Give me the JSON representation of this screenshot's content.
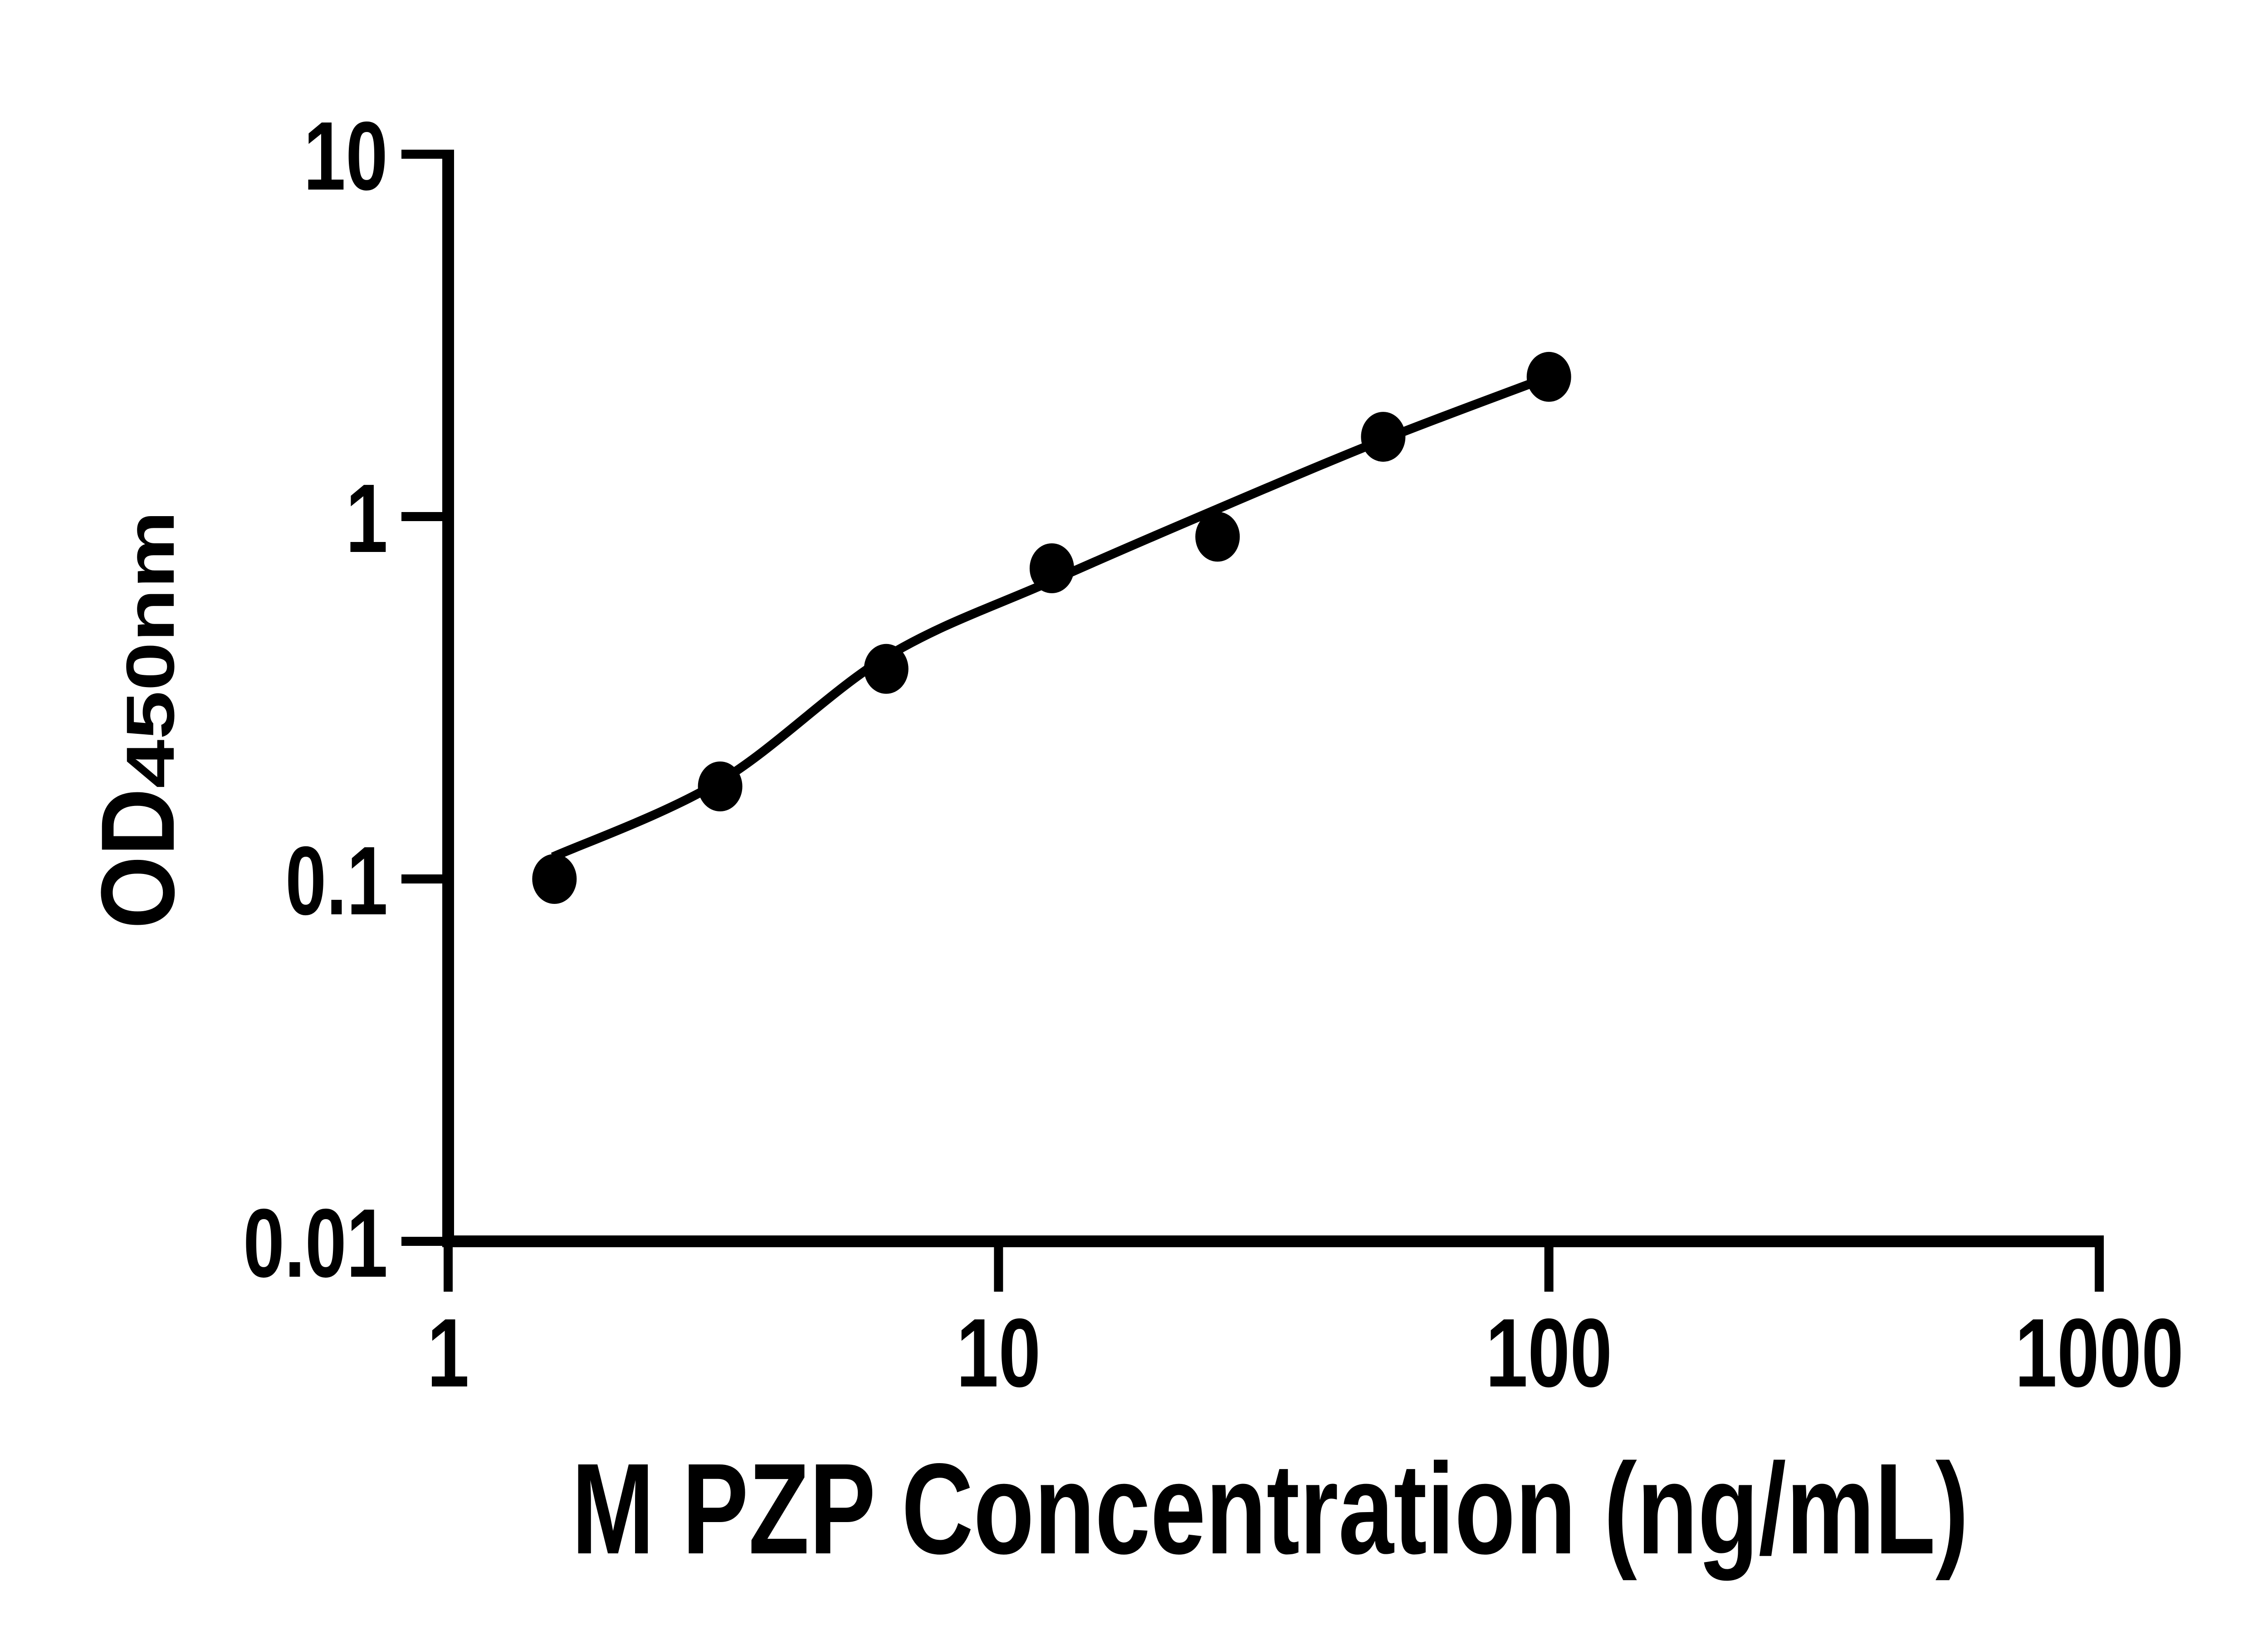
{
  "figure": {
    "background_color": "#ffffff",
    "ink_color": "#000000"
  },
  "chart_data": {
    "type": "scatter",
    "title": "",
    "xlabel": "M PZP Concentration (ng/mL)",
    "ylabel_main": "OD",
    "ylabel_sub": "450nm",
    "x_scale": "log",
    "y_scale": "log",
    "xlim": [
      1,
      1000
    ],
    "ylim": [
      0.01,
      10
    ],
    "x_ticks": [
      1,
      10,
      100,
      1000
    ],
    "y_ticks": [
      10,
      1,
      0.1,
      0.01
    ],
    "grid": false,
    "legend": null,
    "marker_color": "#000000",
    "line_color": "#000000",
    "series": [
      {
        "name": "standard-curve-points",
        "marker": "circle",
        "points": [
          {
            "x": 1.56,
            "y": 0.1
          },
          {
            "x": 3.12,
            "y": 0.18
          },
          {
            "x": 6.25,
            "y": 0.38
          },
          {
            "x": 12.5,
            "y": 0.72
          },
          {
            "x": 25,
            "y": 0.88
          },
          {
            "x": 50,
            "y": 1.66
          },
          {
            "x": 100,
            "y": 2.43
          }
        ]
      }
    ],
    "fit_curve": [
      {
        "x": 1.55,
        "y": 0.115
      },
      {
        "x": 3.12,
        "y": 0.186
      },
      {
        "x": 6.25,
        "y": 0.41
      },
      {
        "x": 12.5,
        "y": 0.665
      },
      {
        "x": 25,
        "y": 1.05
      },
      {
        "x": 50,
        "y": 1.63
      },
      {
        "x": 100,
        "y": 2.43
      }
    ]
  }
}
